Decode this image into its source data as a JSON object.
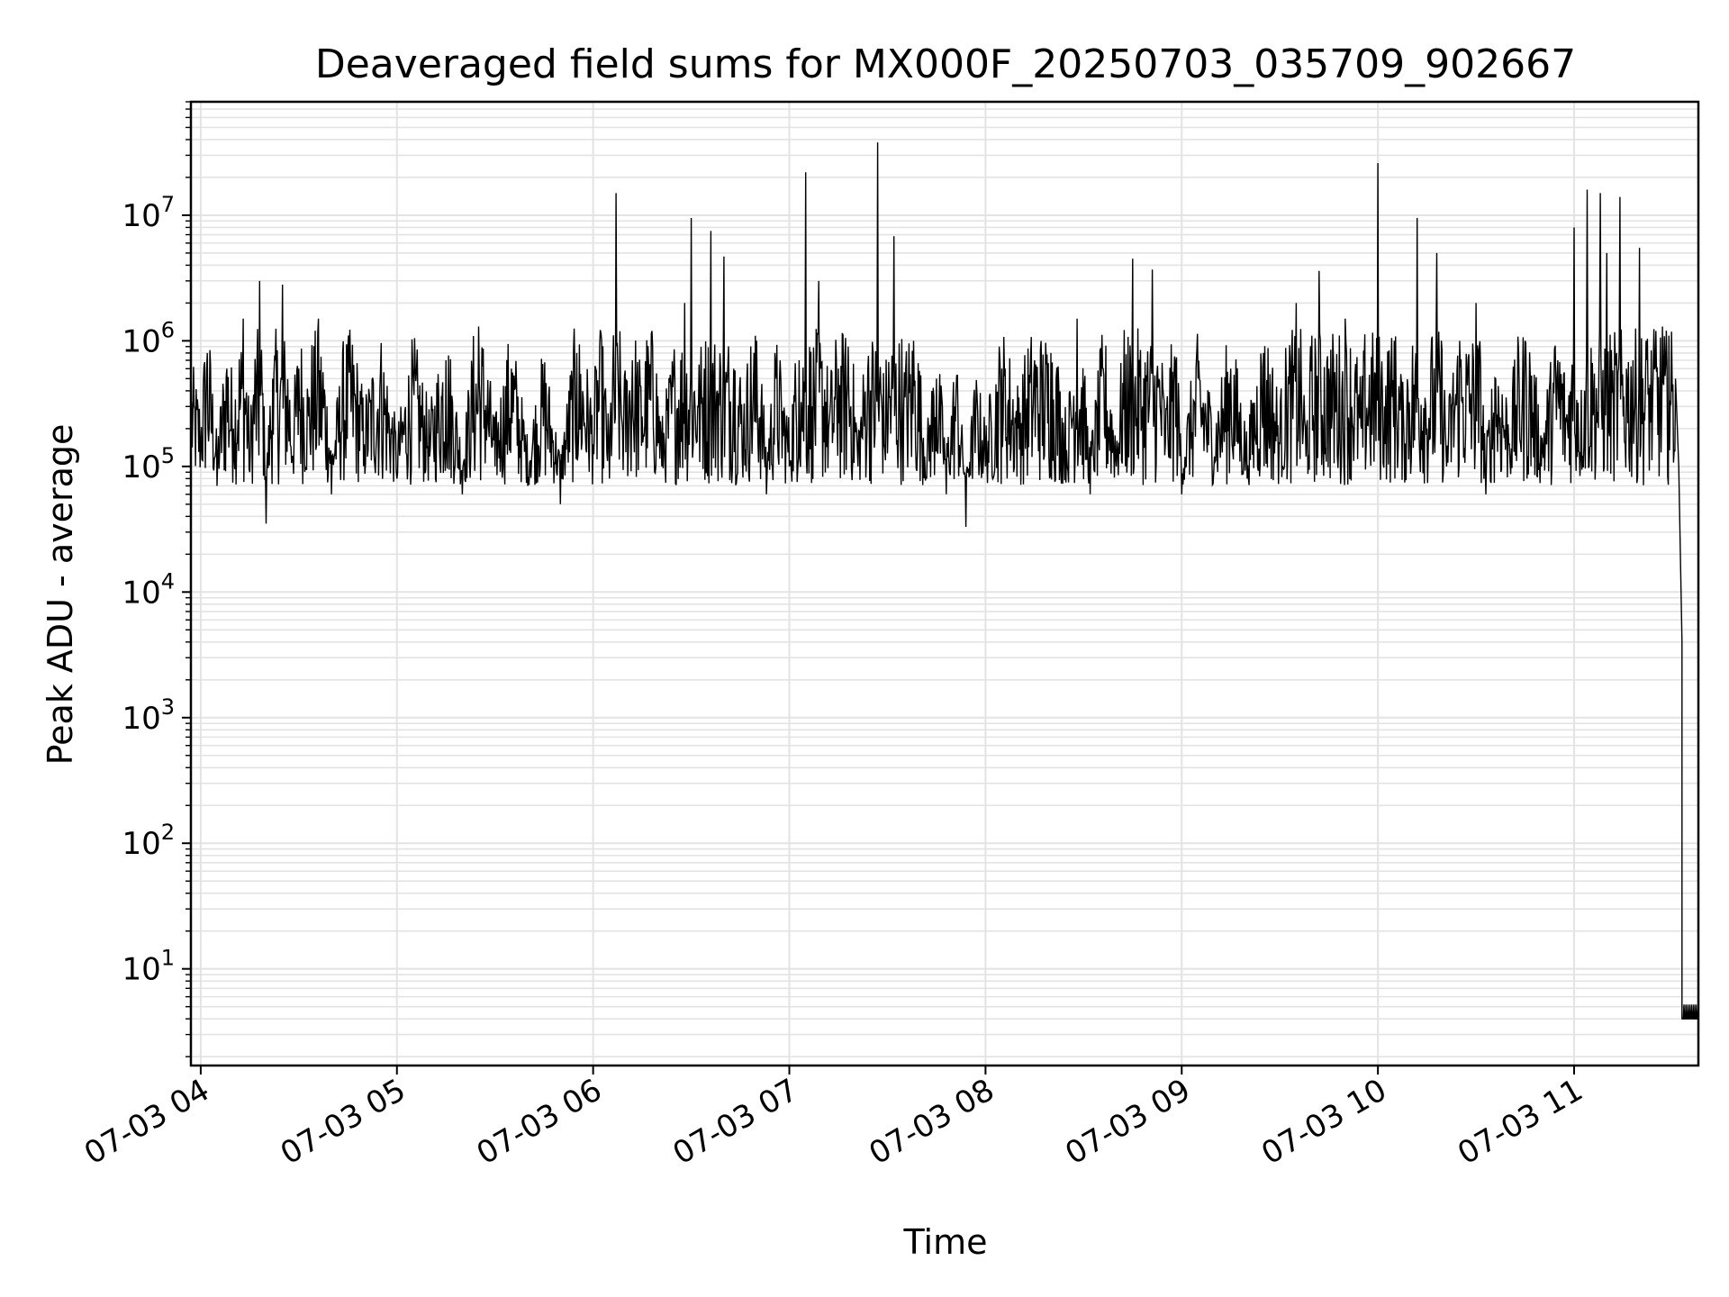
{
  "chart_data": {
    "type": "line",
    "title": "Deaveraged field sums for MX000F_20250703_035709_902667",
    "xlabel": "Time",
    "ylabel": "Peak ADU - average",
    "yscale": "log",
    "ylim": [
      1.7,
      80000000
    ],
    "xlim": [
      "2025-07-03 03:57",
      "2025-07-03 11:38"
    ],
    "x_ticks": [
      "07-03 04",
      "07-03 05",
      "07-03 06",
      "07-03 07",
      "07-03 08",
      "07-03 09",
      "07-03 10",
      "07-03 11"
    ],
    "y_ticks": [
      {
        "base": "10",
        "exp": "1"
      },
      {
        "base": "10",
        "exp": "2"
      },
      {
        "base": "10",
        "exp": "3"
      },
      {
        "base": "10",
        "exp": "4"
      },
      {
        "base": "10",
        "exp": "5"
      },
      {
        "base": "10",
        "exp": "6"
      },
      {
        "base": "10",
        "exp": "7"
      }
    ],
    "grid": true,
    "line_color": "#000000",
    "series": [
      {
        "points": [
          [
            "03:57",
            300000
          ],
          [
            "04:00",
            150000
          ],
          [
            "04:02",
            800000
          ],
          [
            "04:05",
            70000
          ],
          [
            "04:08",
            600000
          ],
          [
            "04:10",
            200000
          ],
          [
            "04:13",
            1500000
          ],
          [
            "04:15",
            90000
          ],
          [
            "04:18",
            3000000
          ],
          [
            "04:20",
            35000
          ],
          [
            "04:22",
            500000
          ],
          [
            "04:25",
            2800000
          ],
          [
            "04:28",
            120000
          ],
          [
            "04:30",
            600000
          ],
          [
            "04:33",
            250000
          ],
          [
            "04:36",
            1500000
          ],
          [
            "04:40",
            60000
          ],
          [
            "04:45",
            900000
          ],
          [
            "04:50",
            150000
          ],
          [
            "04:55",
            600000
          ],
          [
            "05:00",
            80000
          ],
          [
            "05:05",
            500000
          ],
          [
            "05:10",
            120000
          ],
          [
            "05:15",
            700000
          ],
          [
            "05:20",
            60000
          ],
          [
            "05:25",
            1300000
          ],
          [
            "05:30",
            100000
          ],
          [
            "05:35",
            600000
          ],
          [
            "05:40",
            70000
          ],
          [
            "05:45",
            400000
          ],
          [
            "05:50",
            50000
          ],
          [
            "05:55",
            800000
          ],
          [
            "06:00",
            150000
          ],
          [
            "06:02",
            900000
          ],
          [
            "06:05",
            80000
          ],
          [
            "06:07",
            15000000
          ],
          [
            "06:09",
            200000
          ],
          [
            "06:12",
            700000
          ],
          [
            "06:15",
            250000
          ],
          [
            "06:18",
            1200000
          ],
          [
            "06:21",
            100000
          ],
          [
            "06:25",
            500000
          ],
          [
            "06:28",
            2000000
          ],
          [
            "06:30",
            9500000
          ],
          [
            "06:32",
            300000
          ],
          [
            "06:34",
            600000
          ],
          [
            "06:36",
            7500000
          ],
          [
            "06:38",
            400000
          ],
          [
            "06:40",
            4700000
          ],
          [
            "06:43",
            600000
          ],
          [
            "06:46",
            200000
          ],
          [
            "06:50",
            1000000
          ],
          [
            "06:53",
            60000
          ],
          [
            "06:56",
            500000
          ],
          [
            "07:00",
            100000
          ],
          [
            "07:03",
            700000
          ],
          [
            "07:05",
            22000000
          ],
          [
            "07:07",
            300000
          ],
          [
            "07:09",
            3000000
          ],
          [
            "07:12",
            200000
          ],
          [
            "07:15",
            600000
          ],
          [
            "07:18",
            900000
          ],
          [
            "07:21",
            100000
          ],
          [
            "07:24",
            600000
          ],
          [
            "07:27",
            38000000
          ],
          [
            "07:29",
            150000
          ],
          [
            "07:32",
            6800000
          ],
          [
            "07:35",
            300000
          ],
          [
            "07:38",
            1000000
          ],
          [
            "07:42",
            80000
          ],
          [
            "07:45",
            500000
          ],
          [
            "07:48",
            60000
          ],
          [
            "07:51",
            400000
          ],
          [
            "07:54",
            33000
          ],
          [
            "07:57",
            250000
          ],
          [
            "08:00",
            100000
          ],
          [
            "08:05",
            600000
          ],
          [
            "08:10",
            200000
          ],
          [
            "08:15",
            700000
          ],
          [
            "08:20",
            800000
          ],
          [
            "08:25",
            100000
          ],
          [
            "08:28",
            1500000
          ],
          [
            "08:32",
            60000
          ],
          [
            "08:36",
            600000
          ],
          [
            "08:40",
            100000
          ],
          [
            "08:45",
            4500000
          ],
          [
            "08:48",
            300000
          ],
          [
            "08:51",
            3700000
          ],
          [
            "08:55",
            150000
          ],
          [
            "08:58",
            700000
          ],
          [
            "09:00",
            60000
          ],
          [
            "09:05",
            500000
          ],
          [
            "09:10",
            120000
          ],
          [
            "09:15",
            600000
          ],
          [
            "09:20",
            80000
          ],
          [
            "09:25",
            800000
          ],
          [
            "09:30",
            150000
          ],
          [
            "09:35",
            2000000
          ],
          [
            "09:38",
            120000
          ],
          [
            "09:42",
            3600000
          ],
          [
            "09:45",
            600000
          ],
          [
            "09:50",
            1500000
          ],
          [
            "09:55",
            200000
          ],
          [
            "10:00",
            26000000
          ],
          [
            "10:02",
            300000
          ],
          [
            "10:05",
            1000000
          ],
          [
            "10:08",
            150000
          ],
          [
            "10:12",
            9500000
          ],
          [
            "10:15",
            200000
          ],
          [
            "10:18",
            5000000
          ],
          [
            "10:21",
            100000
          ],
          [
            "10:25",
            1000000
          ],
          [
            "10:30",
            2000000
          ],
          [
            "10:33",
            60000
          ],
          [
            "10:36",
            500000
          ],
          [
            "10:40",
            150000
          ],
          [
            "10:45",
            1000000
          ],
          [
            "10:50",
            100000
          ],
          [
            "10:55",
            700000
          ],
          [
            "10:58",
            200000
          ],
          [
            "11:00",
            8000000
          ],
          [
            "11:02",
            120000
          ],
          [
            "11:04",
            16000000
          ],
          [
            "11:06",
            300000
          ],
          [
            "11:08",
            15000000
          ],
          [
            "11:10",
            5000000
          ],
          [
            "11:12",
            300000
          ],
          [
            "11:14",
            14000000
          ],
          [
            "11:16",
            600000
          ],
          [
            "11:18",
            700000
          ],
          [
            "11:20",
            5500000
          ],
          [
            "11:22",
            1000000
          ],
          [
            "11:25",
            1200000
          ],
          [
            "11:27",
            1300000
          ],
          [
            "11:29",
            1100000
          ],
          [
            "11:31",
            500000
          ],
          [
            "11:32",
            100000
          ],
          [
            "11:33",
            4000
          ],
          [
            "11:33",
            4
          ],
          [
            "11:38",
            4
          ]
        ]
      }
    ]
  }
}
